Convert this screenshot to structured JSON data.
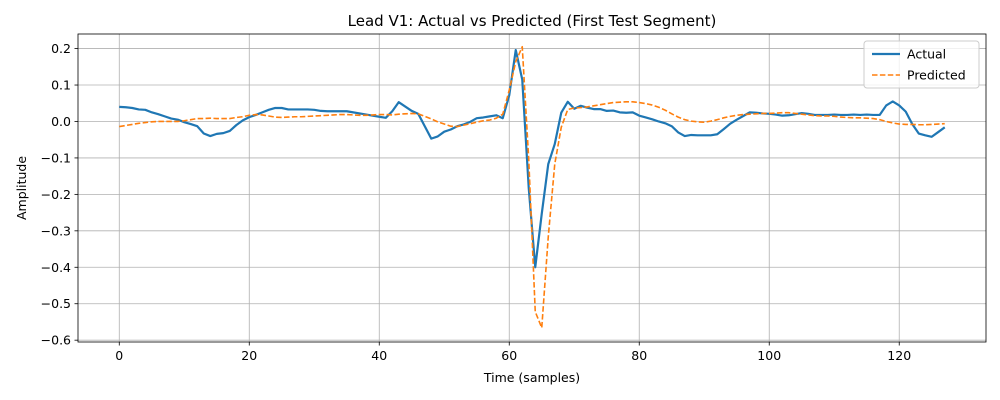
{
  "chart_data": {
    "type": "line",
    "title": "Lead V1: Actual vs Predicted (First Test Segment)",
    "xlabel": "Time (samples)",
    "ylabel": "Amplitude",
    "xlim": [
      -6.35,
      133.35
    ],
    "ylim": [
      -0.605,
      0.24
    ],
    "xticks": [
      0,
      20,
      40,
      60,
      80,
      100,
      120
    ],
    "yticks": [
      -0.6,
      -0.5,
      -0.4,
      -0.3,
      -0.2,
      -0.1,
      0.0,
      0.1,
      0.2
    ],
    "yticklabels": [
      "−0.6",
      "−0.5",
      "−0.4",
      "−0.3",
      "−0.2",
      "−0.1",
      "0.0",
      "0.1",
      "0.2"
    ],
    "grid": true,
    "legend_position": "top-right",
    "series": [
      {
        "name": "Actual",
        "color": "#1f77b4",
        "style": "solid",
        "values": [
          0.04,
          0.039,
          0.037,
          0.033,
          0.032,
          0.025,
          0.02,
          0.014,
          0.008,
          0.005,
          -0.002,
          -0.007,
          -0.013,
          -0.033,
          -0.04,
          -0.034,
          -0.032,
          -0.026,
          -0.01,
          0.003,
          0.012,
          0.018,
          0.025,
          0.032,
          0.037,
          0.037,
          0.033,
          0.033,
          0.033,
          0.033,
          0.032,
          0.029,
          0.028,
          0.028,
          0.028,
          0.028,
          0.025,
          0.022,
          0.019,
          0.016,
          0.013,
          0.01,
          0.028,
          0.053,
          0.041,
          0.029,
          0.021,
          -0.013,
          -0.047,
          -0.041,
          -0.028,
          -0.022,
          -0.013,
          -0.008,
          -0.001,
          0.009,
          0.011,
          0.014,
          0.017,
          0.009,
          0.072,
          0.196,
          0.115,
          -0.183,
          -0.4,
          -0.253,
          -0.117,
          -0.062,
          0.024,
          0.054,
          0.035,
          0.043,
          0.038,
          0.034,
          0.034,
          0.029,
          0.03,
          0.025,
          0.024,
          0.025,
          0.016,
          0.011,
          0.006,
          0.0,
          -0.005,
          -0.013,
          -0.03,
          -0.04,
          -0.037,
          -0.038,
          -0.038,
          -0.038,
          -0.035,
          -0.021,
          -0.006,
          0.005,
          0.015,
          0.025,
          0.024,
          0.022,
          0.021,
          0.019,
          0.016,
          0.017,
          0.02,
          0.023,
          0.021,
          0.018,
          0.018,
          0.018,
          0.019,
          0.018,
          0.018,
          0.019,
          0.018,
          0.019,
          0.018,
          0.018,
          0.044,
          0.055,
          0.044,
          0.027,
          -0.007,
          -0.033,
          -0.038,
          -0.042,
          -0.029,
          -0.016
        ]
      },
      {
        "name": "Predicted",
        "color": "#ff7f0e",
        "style": "dashed",
        "values": [
          -0.014,
          -0.011,
          -0.008,
          -0.005,
          -0.003,
          -0.001,
          0.0,
          0.0,
          0.0,
          0.0,
          0.002,
          0.005,
          0.008,
          0.008,
          0.009,
          0.008,
          0.008,
          0.008,
          0.011,
          0.013,
          0.017,
          0.019,
          0.018,
          0.015,
          0.012,
          0.011,
          0.012,
          0.013,
          0.013,
          0.014,
          0.015,
          0.016,
          0.017,
          0.018,
          0.019,
          0.019,
          0.018,
          0.017,
          0.017,
          0.018,
          0.019,
          0.019,
          0.018,
          0.02,
          0.021,
          0.022,
          0.021,
          0.014,
          0.007,
          -0.001,
          -0.007,
          -0.013,
          -0.014,
          -0.01,
          -0.006,
          -0.002,
          0.002,
          0.004,
          0.009,
          0.02,
          0.086,
          0.164,
          0.205,
          -0.105,
          -0.522,
          -0.566,
          -0.317,
          -0.117,
          -0.016,
          0.033,
          0.037,
          0.038,
          0.04,
          0.043,
          0.046,
          0.049,
          0.052,
          0.053,
          0.054,
          0.054,
          0.052,
          0.049,
          0.045,
          0.039,
          0.031,
          0.021,
          0.012,
          0.005,
          0.001,
          -0.001,
          -0.002,
          0.001,
          0.005,
          0.01,
          0.014,
          0.017,
          0.019,
          0.02,
          0.021,
          0.022,
          0.022,
          0.023,
          0.024,
          0.024,
          0.022,
          0.02,
          0.018,
          0.016,
          0.015,
          0.015,
          0.014,
          0.012,
          0.011,
          0.01,
          0.01,
          0.009,
          0.008,
          0.005,
          0.0,
          -0.004,
          -0.007,
          -0.008,
          -0.008,
          -0.009,
          -0.009,
          -0.008,
          -0.007,
          -0.006
        ]
      }
    ]
  }
}
